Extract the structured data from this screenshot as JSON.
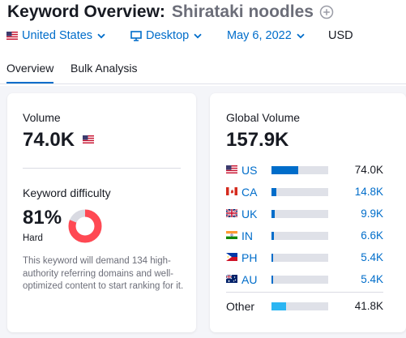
{
  "header": {
    "title": "Keyword Overview:",
    "keyword": "Shirataki noodles",
    "add_icon": "add-circle-icon"
  },
  "filters": {
    "country": "United States",
    "device": "Desktop",
    "date": "May 6, 2022",
    "currency": "USD"
  },
  "tabs": [
    {
      "label": "Overview",
      "active": true
    },
    {
      "label": "Bulk Analysis",
      "active": false
    }
  ],
  "volume": {
    "label": "Volume",
    "value": "74.0K",
    "flag": "us-flag-icon"
  },
  "keyword_difficulty": {
    "label": "Keyword difficulty",
    "value": "81%",
    "percent": 81,
    "level": "Hard",
    "description": "This keyword will demand 134 high-authority referring domains and well-optimized content to start ranking for it.",
    "color": "#ff4953"
  },
  "global_volume": {
    "label": "Global Volume",
    "value": "157.9K",
    "countries": [
      {
        "code": "US",
        "value": "74.0K",
        "share": 0.47,
        "flag": "us-flag-icon"
      },
      {
        "code": "CA",
        "value": "14.8K",
        "share": 0.09,
        "flag": "ca-flag-icon"
      },
      {
        "code": "UK",
        "value": "9.9K",
        "share": 0.06,
        "flag": "uk-flag-icon"
      },
      {
        "code": "IN",
        "value": "6.6K",
        "share": 0.04,
        "flag": "in-flag-icon"
      },
      {
        "code": "PH",
        "value": "5.4K",
        "share": 0.035,
        "flag": "ph-flag-icon"
      },
      {
        "code": "AU",
        "value": "5.4K",
        "share": 0.035,
        "flag": "au-flag-icon"
      }
    ],
    "other": {
      "label": "Other",
      "value": "41.8K",
      "share": 0.26
    }
  },
  "colors": {
    "link": "#006dca",
    "bar_fill": "#006dca",
    "bar_other": "#2bb5f2",
    "bar_track": "#dfe1e8",
    "difficulty_hard": "#ff4953",
    "donut_track": "#d9dae2"
  }
}
